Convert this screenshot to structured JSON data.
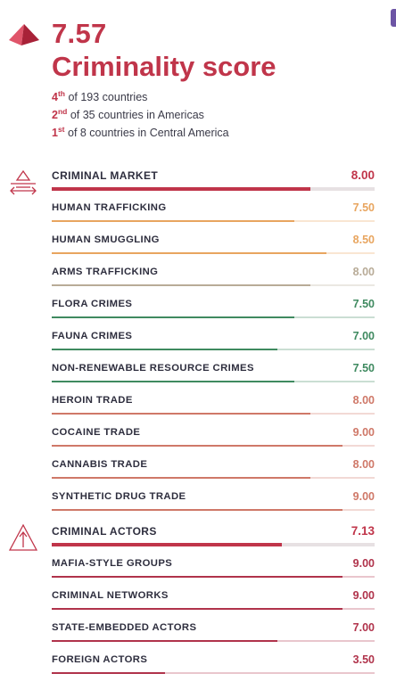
{
  "header": {
    "score": "7.57",
    "title": "Criminality score",
    "ranks": [
      {
        "pos": "4",
        "suffix": "th",
        "text": " of 193 countries"
      },
      {
        "pos": "2",
        "suffix": "nd",
        "text": " of 35 countries in Americas"
      },
      {
        "pos": "1",
        "suffix": "st",
        "text": " of 8 countries in Central America"
      }
    ]
  },
  "colors": {
    "brand": "#c0354a",
    "section_track": "#e7e1e3",
    "human": "#e8a55f",
    "arms": "#b8ab97",
    "environment": "#3f8a60",
    "drugs": "#cf7868",
    "actors": "#b0334b"
  },
  "sections": [
    {
      "name": "CRIMINAL MARKET",
      "value": "8.00",
      "icon": "criminal-market-icon",
      "items": [
        {
          "label": "HUMAN TRAFFICKING",
          "value": "7.50"
        },
        {
          "label": "HUMAN SMUGGLING",
          "value": "8.50"
        },
        {
          "label": "ARMS TRAFFICKING",
          "value": "8.00"
        },
        {
          "label": "FLORA CRIMES",
          "value": "7.50"
        },
        {
          "label": "FAUNA CRIMES",
          "value": "7.00"
        },
        {
          "label": "NON-RENEWABLE RESOURCE CRIMES",
          "value": "7.50"
        },
        {
          "label": "HEROIN TRADE",
          "value": "8.00"
        },
        {
          "label": "COCAINE TRADE",
          "value": "9.00"
        },
        {
          "label": "CANNABIS TRADE",
          "value": "8.00"
        },
        {
          "label": "SYNTHETIC DRUG TRADE",
          "value": "9.00"
        }
      ]
    },
    {
      "name": "CRIMINAL ACTORS",
      "value": "7.13",
      "icon": "criminal-actors-icon",
      "items": [
        {
          "label": "MAFIA-STYLE GROUPS",
          "value": "9.00"
        },
        {
          "label": "CRIMINAL NETWORKS",
          "value": "9.00"
        },
        {
          "label": "STATE-EMBEDDED ACTORS",
          "value": "7.00"
        },
        {
          "label": "FOREIGN ACTORS",
          "value": "3.50"
        }
      ]
    }
  ]
}
